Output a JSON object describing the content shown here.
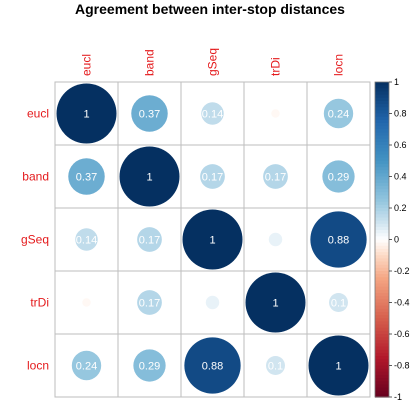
{
  "title": "Agreement between inter-stop distances",
  "chart_data": {
    "type": "heatmap",
    "title": "Agreement between inter-stop distances",
    "row_labels": [
      "eucl",
      "band",
      "gSeq",
      "trDi",
      "locn"
    ],
    "col_labels": [
      "eucl",
      "band",
      "gSeq",
      "trDi",
      "locn"
    ],
    "matrix": [
      [
        1,
        0.37,
        0.14,
        -0.02,
        0.24
      ],
      [
        0.37,
        1,
        0.17,
        0.17,
        0.29
      ],
      [
        0.14,
        0.17,
        1,
        0.05,
        0.88
      ],
      [
        -0.02,
        0.17,
        0.05,
        1,
        0.1
      ],
      [
        0.24,
        0.29,
        0.88,
        0.1,
        1
      ]
    ],
    "printed_labels": [
      [
        "1",
        "0.37",
        "0.14",
        "",
        "0.24"
      ],
      [
        "0.37",
        "1",
        "0.17",
        "0.17",
        "0.29"
      ],
      [
        "0.14",
        "0.17",
        "1",
        "",
        "0.88"
      ],
      [
        "",
        "0.17",
        "",
        "1",
        "0.1"
      ],
      [
        "0.24",
        "0.29",
        "0.88",
        "0.1",
        "1"
      ]
    ],
    "colorbar": {
      "range": [
        -1,
        1
      ],
      "tick_labels": [
        "1",
        "0.8",
        "0.6",
        "0.4",
        "0.2",
        "0",
        "-0.2",
        "-0.4",
        "-0.6",
        "-0.8",
        "-1"
      ],
      "colors": {
        "negative": "#67001f",
        "mid": "#ffffff",
        "positive": "#053061"
      }
    },
    "grid": true,
    "legend": "right",
    "label_color": "#e41a1c"
  }
}
